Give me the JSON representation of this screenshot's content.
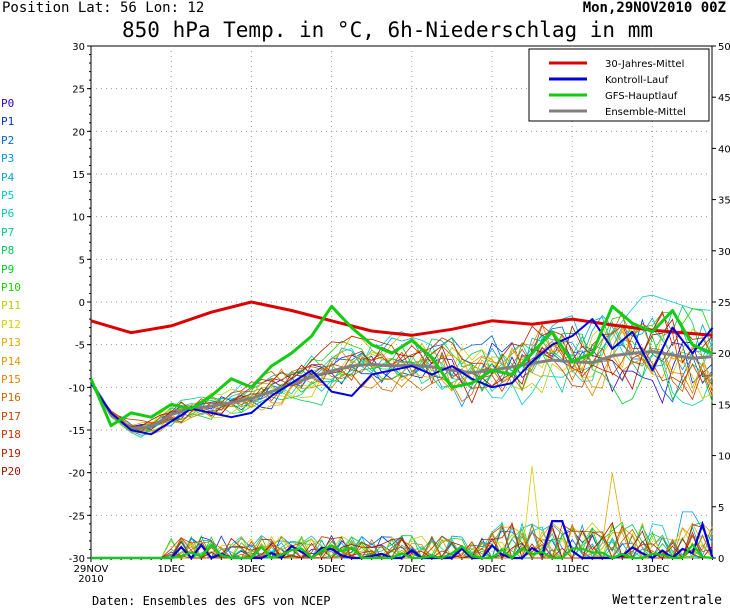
{
  "header": {
    "position": "Position  Lat: 56 Lon: 12",
    "date": "Mon,29NOV2010 00Z",
    "title": "850 hPa Temp. in °C, 6h-Niederschlag in mm"
  },
  "footer": {
    "source": "Daten: Ensembles des GFS von NCEP",
    "brand": "Wetterzentrale"
  },
  "members": [
    {
      "label": "P0",
      "color": "#3300cc"
    },
    {
      "label": "P1",
      "color": "#0033cc"
    },
    {
      "label": "P2",
      "color": "#0066dd"
    },
    {
      "label": "P3",
      "color": "#0099dd"
    },
    {
      "label": "P4",
      "color": "#00aacc"
    },
    {
      "label": "P5",
      "color": "#00cccc"
    },
    {
      "label": "P6",
      "color": "#00ccaa"
    },
    {
      "label": "P7",
      "color": "#00cc88"
    },
    {
      "label": "P8",
      "color": "#00cc55"
    },
    {
      "label": "P9",
      "color": "#00cc22"
    },
    {
      "label": "P10",
      "color": "#22cc00"
    },
    {
      "label": "P11",
      "color": "#bbcc00"
    },
    {
      "label": "P12",
      "color": "#ddcc00"
    },
    {
      "label": "P13",
      "color": "#ddaa00"
    },
    {
      "label": "P14",
      "color": "#dd9900"
    },
    {
      "label": "P15",
      "color": "#dd8800"
    },
    {
      "label": "P16",
      "color": "#cc6600"
    },
    {
      "label": "P17",
      "color": "#cc4400"
    },
    {
      "label": "P18",
      "color": "#cc3300"
    },
    {
      "label": "P19",
      "color": "#bb2200"
    },
    {
      "label": "P20",
      "color": "#aa1100"
    }
  ],
  "chart_data": {
    "type": "line",
    "xlabel": "",
    "ylabel": "",
    "x_first_tick": [
      "29NOV",
      "2010"
    ],
    "x_ticks": [
      "1DEC",
      "3DEC",
      "5DEC",
      "7DEC",
      "9DEC",
      "11DEC",
      "13DEC"
    ],
    "x_range_days": [
      0,
      15.5
    ],
    "y_left": {
      "range": [
        -30,
        30
      ],
      "ticks": [
        30,
        25,
        20,
        15,
        10,
        5,
        0,
        -5,
        -10,
        -15,
        -20,
        -25,
        -30
      ]
    },
    "y_right": {
      "range": [
        0,
        50
      ],
      "ticks": [
        50,
        45,
        40,
        35,
        30,
        25,
        20,
        15,
        10,
        5,
        0
      ]
    },
    "grid": true,
    "legend_position": "top-right",
    "series": [
      {
        "name": "30-Jahres-Mittel",
        "color": "#dd0000",
        "width": 3,
        "axis": "left",
        "x": [
          0,
          1,
          2,
          3,
          4,
          5,
          6,
          7,
          8,
          9,
          10,
          11,
          12,
          13,
          14,
          15.5
        ],
        "y": [
          -2.2,
          -3.6,
          -2.8,
          -1.2,
          0,
          -1,
          -2.2,
          -3.4,
          -3.9,
          -3.2,
          -2.2,
          -2.6,
          -2,
          -2.7,
          -3.3,
          -3.9
        ]
      },
      {
        "name": "Kontroll-Lauf",
        "color": "#0000dd",
        "width": 2,
        "axis": "left",
        "x": [
          0,
          0.5,
          1,
          1.5,
          2,
          2.5,
          3,
          3.5,
          4,
          4.5,
          5,
          5.5,
          6,
          6.5,
          7,
          7.5,
          8,
          8.5,
          9,
          9.5,
          10,
          10.5,
          11,
          11.5,
          12,
          12.5,
          13,
          13.5,
          14,
          14.5,
          15,
          15.5
        ],
        "y": [
          -9.5,
          -13,
          -15,
          -15.5,
          -14,
          -12.5,
          -13,
          -13.5,
          -13,
          -11,
          -9.5,
          -8,
          -10.5,
          -11,
          -8.5,
          -8,
          -7.5,
          -8.5,
          -7.5,
          -9,
          -10,
          -9.5,
          -7,
          -5,
          -4,
          -2,
          -5.5,
          -3.5,
          -8,
          -3,
          -6,
          -3
        ]
      },
      {
        "name": "GFS-Hauptlauf",
        "color": "#11cc11",
        "width": 3,
        "axis": "left",
        "x": [
          0,
          0.5,
          1,
          1.5,
          2,
          2.5,
          3,
          3.5,
          4,
          4.5,
          5,
          5.5,
          6,
          6.5,
          7,
          7.5,
          8,
          8.5,
          9,
          9.5,
          10,
          10.5,
          11,
          11.5,
          12,
          12.5,
          13,
          13.5,
          14,
          14.5,
          15,
          15.5
        ],
        "y": [
          -9,
          -14.5,
          -13,
          -13.5,
          -12,
          -12.5,
          -11,
          -9,
          -10,
          -7.5,
          -6,
          -4,
          -0.5,
          -3,
          -5,
          -6,
          -4.5,
          -6.5,
          -10,
          -9.5,
          -8,
          -8.5,
          -6,
          -3.5,
          -7,
          -6,
          -0.5,
          -2.5,
          -3.5,
          -1,
          -5,
          -6
        ]
      },
      {
        "name": "Ensemble-Mittel",
        "color": "#808080",
        "width": 3,
        "axis": "left",
        "x": [
          0,
          0.5,
          1,
          1.5,
          2,
          2.5,
          3,
          3.5,
          4,
          4.5,
          5,
          5.5,
          6,
          6.5,
          7,
          7.5,
          8,
          8.5,
          9,
          9.5,
          10,
          10.5,
          11,
          11.5,
          12,
          12.5,
          13,
          13.5,
          14,
          14.5,
          15,
          15.5
        ],
        "y": [
          -9.3,
          -13.2,
          -14.8,
          -14.6,
          -13.2,
          -12.5,
          -12.2,
          -11.8,
          -11.3,
          -10.5,
          -9.6,
          -8.8,
          -8.1,
          -7.5,
          -7.3,
          -7.5,
          -7.4,
          -7.6,
          -8,
          -8.3,
          -8,
          -7.6,
          -7.2,
          -6.8,
          -7,
          -7.1,
          -6.3,
          -6,
          -5.8,
          -6.2,
          -6.6,
          -6.4
        ]
      }
    ],
    "precip_legend_note": "thin member lines in lower panel = 6h precipitation on right axis"
  },
  "legend": {
    "items": [
      {
        "name": "30-Jahres-Mittel",
        "color": "#dd0000"
      },
      {
        "name": "Kontroll-Lauf",
        "color": "#0000dd"
      },
      {
        "name": "GFS-Hauptlauf",
        "color": "#11cc11"
      },
      {
        "name": "Ensemble-Mittel",
        "color": "#808080"
      }
    ]
  }
}
